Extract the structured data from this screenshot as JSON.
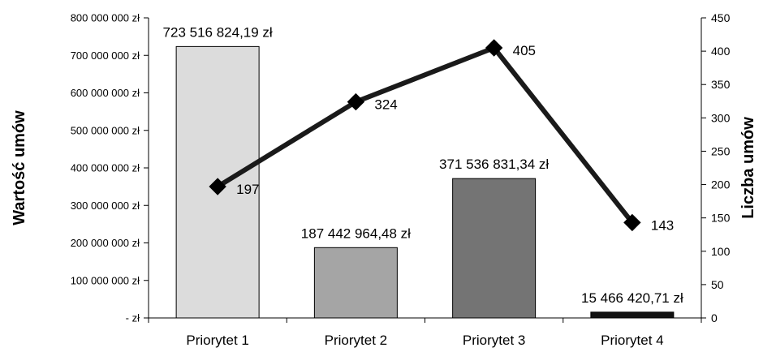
{
  "chart_data": {
    "type": "bar",
    "categories": [
      "Priorytet 1",
      "Priorytet 2",
      "Priorytet 3",
      "Priorytet 4"
    ],
    "series": [
      {
        "type": "bar",
        "axis": "left",
        "values": [
          723516824.19,
          187442964.48,
          371536831.34,
          15466420.71
        ],
        "data_labels": [
          "723 516 824,19 zł",
          "187 442 964,48 zł",
          "371 536 831,34 zł",
          "15 466 420,71 zł"
        ],
        "colors": [
          "#dcdcdc",
          "#a5a5a5",
          "#747474",
          "#111111"
        ]
      },
      {
        "type": "line",
        "axis": "right",
        "values": [
          197,
          324,
          405,
          143
        ],
        "data_labels": [
          "197",
          "324",
          "405",
          "143"
        ],
        "color": "#1a1a1a"
      }
    ],
    "ylabel": "Wartość umów",
    "y2label": "Liczba umów",
    "ylim": [
      0,
      800000000
    ],
    "y2lim": [
      0,
      450
    ],
    "yticks": [
      "- zł",
      "100 000 000 zł",
      "200 000 000 zł",
      "300 000 000 zł",
      "400 000 000 zł",
      "500 000 000 zł",
      "600 000 000 zł",
      "700 000 000 zł",
      "800 000 000 zł"
    ],
    "y2ticks": [
      "0",
      "50",
      "100",
      "150",
      "200",
      "250",
      "300",
      "350",
      "400",
      "450"
    ],
    "grid": false,
    "legend": "none"
  }
}
